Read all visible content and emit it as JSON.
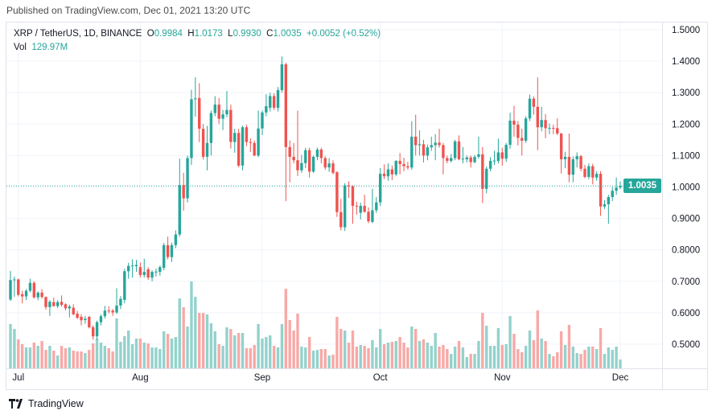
{
  "header": {
    "published": "Published on TradingView.com, Dec 01, 2021 13:20 UTC"
  },
  "legend": {
    "symbol": "XRP / TetherUS, 1D, BINANCE",
    "open_label": "O",
    "open": "0.9984",
    "high_label": "H",
    "high": "1.0173",
    "low_label": "L",
    "low": "0.9930",
    "close_label": "C",
    "close": "1.0035",
    "change": "+0.0052 (+0.52%)",
    "vol_label": "Vol",
    "vol": "129.97M"
  },
  "last_price": "1.0035",
  "footer": {
    "brand": "TradingView"
  },
  "colors": {
    "up": "#26a69a",
    "down": "#ef5350",
    "up_volume": "#93d2cc",
    "down_volume": "#f7a9a7",
    "grid": "#f0f3fa"
  },
  "chart_data": {
    "type": "candlestick",
    "symbol": "XRP / TetherUS",
    "interval": "1D",
    "exchange": "BINANCE",
    "ylim": [
      0.43,
      1.52
    ],
    "y_ticks": [
      "1.5000",
      "1.4000",
      "1.3000",
      "1.2000",
      "1.1000",
      "1.0000",
      "0.9000",
      "0.8000",
      "0.7000",
      "0.6000",
      "0.5000"
    ],
    "x_ticks": [
      {
        "label": "Jul",
        "date": "2021-07-01"
      },
      {
        "label": "Aug",
        "date": "2021-08-01"
      },
      {
        "label": "Sep",
        "date": "2021-09-01"
      },
      {
        "label": "Oct",
        "date": "2021-10-01"
      },
      {
        "label": "Nov",
        "date": "2021-11-01"
      },
      {
        "label": "Dec",
        "date": "2021-12-01"
      }
    ],
    "grid": true,
    "volume_unit": "M",
    "columns": [
      "date",
      "open",
      "high",
      "low",
      "close",
      "volume"
    ],
    "candles": [
      [
        "2021-06-29",
        0.642,
        0.733,
        0.638,
        0.704,
        649
      ],
      [
        "2021-06-30",
        0.704,
        0.715,
        0.651,
        0.706,
        578
      ],
      [
        "2021-07-01",
        0.706,
        0.709,
        0.652,
        0.657,
        425
      ],
      [
        "2021-07-02",
        0.659,
        0.67,
        0.63,
        0.652,
        354
      ],
      [
        "2021-07-03",
        0.652,
        0.675,
        0.64,
        0.67,
        307
      ],
      [
        "2021-07-04",
        0.67,
        0.708,
        0.665,
        0.695,
        307
      ],
      [
        "2021-07-05",
        0.695,
        0.7,
        0.645,
        0.649,
        378
      ],
      [
        "2021-07-06",
        0.649,
        0.668,
        0.64,
        0.664,
        330
      ],
      [
        "2021-07-07",
        0.664,
        0.675,
        0.645,
        0.65,
        401
      ],
      [
        "2021-07-08",
        0.65,
        0.652,
        0.61,
        0.618,
        271
      ],
      [
        "2021-07-09",
        0.618,
        0.64,
        0.59,
        0.635,
        330
      ],
      [
        "2021-07-10",
        0.634,
        0.648,
        0.62,
        0.621,
        260
      ],
      [
        "2021-07-11",
        0.621,
        0.64,
        0.615,
        0.634,
        189
      ],
      [
        "2021-07-12",
        0.635,
        0.655,
        0.62,
        0.625,
        330
      ],
      [
        "2021-07-13",
        0.627,
        0.63,
        0.608,
        0.614,
        295
      ],
      [
        "2021-07-14",
        0.614,
        0.626,
        0.585,
        0.62,
        307
      ],
      [
        "2021-07-15",
        0.616,
        0.627,
        0.592,
        0.595,
        260
      ],
      [
        "2021-07-16",
        0.597,
        0.606,
        0.58,
        0.584,
        248
      ],
      [
        "2021-07-17",
        0.587,
        0.595,
        0.56,
        0.576,
        248
      ],
      [
        "2021-07-18",
        0.577,
        0.59,
        0.565,
        0.581,
        224
      ],
      [
        "2021-07-19",
        0.587,
        0.59,
        0.55,
        0.554,
        271
      ],
      [
        "2021-07-20",
        0.554,
        0.56,
        0.514,
        0.525,
        366
      ],
      [
        "2021-07-21",
        0.525,
        0.575,
        0.515,
        0.57,
        437
      ],
      [
        "2021-07-22",
        0.57,
        0.595,
        0.56,
        0.589,
        378
      ],
      [
        "2021-07-23",
        0.589,
        0.622,
        0.582,
        0.607,
        330
      ],
      [
        "2021-07-24",
        0.607,
        0.62,
        0.598,
        0.605,
        295
      ],
      [
        "2021-07-25",
        0.607,
        0.612,
        0.59,
        0.601,
        248
      ],
      [
        "2021-07-26",
        0.601,
        0.678,
        0.596,
        0.623,
        732
      ],
      [
        "2021-07-27",
        0.623,
        0.653,
        0.612,
        0.644,
        389
      ],
      [
        "2021-07-28",
        0.641,
        0.74,
        0.63,
        0.732,
        472
      ],
      [
        "2021-07-29",
        0.732,
        0.759,
        0.708,
        0.749,
        555
      ],
      [
        "2021-07-30",
        0.749,
        0.77,
        0.712,
        0.75,
        354
      ],
      [
        "2021-07-31",
        0.748,
        0.768,
        0.73,
        0.752,
        437
      ],
      [
        "2021-08-01",
        0.745,
        0.76,
        0.712,
        0.72,
        437
      ],
      [
        "2021-08-02",
        0.72,
        0.772,
        0.712,
        0.73,
        378
      ],
      [
        "2021-08-03",
        0.738,
        0.745,
        0.705,
        0.712,
        366
      ],
      [
        "2021-08-04",
        0.712,
        0.735,
        0.7,
        0.73,
        307
      ],
      [
        "2021-08-05",
        0.728,
        0.74,
        0.715,
        0.731,
        307
      ],
      [
        "2021-08-06",
        0.73,
        0.75,
        0.718,
        0.745,
        283
      ],
      [
        "2021-08-07",
        0.743,
        0.822,
        0.735,
        0.815,
        543
      ],
      [
        "2021-08-08",
        0.815,
        0.842,
        0.77,
        0.777,
        507
      ],
      [
        "2021-08-09",
        0.777,
        0.823,
        0.762,
        0.815,
        437
      ],
      [
        "2021-08-10",
        0.815,
        0.862,
        0.805,
        0.849,
        460
      ],
      [
        "2021-08-11",
        0.849,
        1.09,
        0.842,
        1.006,
        1027
      ],
      [
        "2021-08-12",
        1.006,
        1.045,
        0.925,
        0.964,
        897
      ],
      [
        "2021-08-13",
        0.964,
        1.1,
        0.951,
        1.092,
        614
      ],
      [
        "2021-08-14",
        1.092,
        1.309,
        1.07,
        1.279,
        1274
      ],
      [
        "2021-08-15",
        1.279,
        1.349,
        1.224,
        1.282,
        1050
      ],
      [
        "2021-08-16",
        1.283,
        1.33,
        1.143,
        1.185,
        814
      ],
      [
        "2021-08-17",
        1.185,
        1.2,
        1.087,
        1.096,
        814
      ],
      [
        "2021-08-18",
        1.096,
        1.194,
        1.053,
        1.14,
        791
      ],
      [
        "2021-08-19",
        1.14,
        1.243,
        1.1,
        1.235,
        661
      ],
      [
        "2021-08-20",
        1.235,
        1.289,
        1.225,
        1.262,
        543
      ],
      [
        "2021-08-21",
        1.262,
        1.283,
        1.2,
        1.217,
        354
      ],
      [
        "2021-08-22",
        1.217,
        1.245,
        1.181,
        1.231,
        330
      ],
      [
        "2021-08-23",
        1.231,
        1.305,
        1.222,
        1.245,
        602
      ],
      [
        "2021-08-24",
        1.245,
        1.262,
        1.122,
        1.143,
        578
      ],
      [
        "2021-08-25",
        1.143,
        1.185,
        1.109,
        1.172,
        484
      ],
      [
        "2021-08-26",
        1.172,
        1.185,
        1.063,
        1.068,
        519
      ],
      [
        "2021-08-27",
        1.068,
        1.195,
        1.053,
        1.19,
        519
      ],
      [
        "2021-08-28",
        1.19,
        1.198,
        1.13,
        1.143,
        295
      ],
      [
        "2021-08-29",
        1.143,
        1.155,
        1.112,
        1.14,
        295
      ],
      [
        "2021-08-30",
        1.14,
        1.148,
        1.098,
        1.1,
        342
      ],
      [
        "2021-08-31",
        1.1,
        1.243,
        1.095,
        1.186,
        649
      ],
      [
        "2021-09-01",
        1.186,
        1.243,
        1.165,
        1.237,
        437
      ],
      [
        "2021-09-02",
        1.237,
        1.295,
        1.225,
        1.257,
        460
      ],
      [
        "2021-09-03",
        1.252,
        1.3,
        1.24,
        1.289,
        484
      ],
      [
        "2021-09-04",
        1.289,
        1.298,
        1.245,
        1.252,
        330
      ],
      [
        "2021-09-05",
        1.252,
        1.318,
        1.24,
        1.308,
        307
      ],
      [
        "2021-09-06",
        1.308,
        1.415,
        1.3,
        1.39,
        649
      ],
      [
        "2021-09-07",
        1.39,
        1.395,
        0.955,
        1.127,
        1168
      ],
      [
        "2021-09-08",
        1.127,
        1.148,
        1.015,
        1.096,
        708
      ],
      [
        "2021-09-09",
        1.096,
        1.14,
        1.075,
        1.085,
        555
      ],
      [
        "2021-09-10",
        1.085,
        1.243,
        1.035,
        1.053,
        802
      ],
      [
        "2021-09-11",
        1.053,
        1.102,
        1.045,
        1.076,
        319
      ],
      [
        "2021-09-12",
        1.076,
        1.125,
        1.06,
        1.117,
        307
      ],
      [
        "2021-09-13",
        1.117,
        1.125,
        1.03,
        1.049,
        460
      ],
      [
        "2021-09-14",
        1.049,
        1.1,
        1.045,
        1.096,
        260
      ],
      [
        "2021-09-15",
        1.096,
        1.125,
        1.085,
        1.119,
        271
      ],
      [
        "2021-09-16",
        1.119,
        1.125,
        1.075,
        1.092,
        283
      ],
      [
        "2021-09-17",
        1.092,
        1.098,
        1.055,
        1.062,
        283
      ],
      [
        "2021-09-18",
        1.062,
        1.092,
        1.048,
        1.075,
        189
      ],
      [
        "2021-09-19",
        1.075,
        1.085,
        1.04,
        1.045,
        201
      ],
      [
        "2021-09-20",
        1.047,
        1.05,
        0.905,
        0.92,
        755
      ],
      [
        "2021-09-21",
        0.92,
        0.962,
        0.862,
        0.872,
        578
      ],
      [
        "2021-09-22",
        0.872,
        1.012,
        0.86,
        1.005,
        555
      ],
      [
        "2021-09-23",
        1.005,
        1.018,
        0.965,
        1.002,
        378
      ],
      [
        "2021-09-24",
        1.002,
        1.005,
        0.883,
        0.94,
        555
      ],
      [
        "2021-09-25",
        0.94,
        0.953,
        0.912,
        0.938,
        319
      ],
      [
        "2021-09-26",
        0.918,
        0.95,
        0.897,
        0.94,
        342
      ],
      [
        "2021-09-27",
        0.94,
        0.975,
        0.918,
        0.921,
        330
      ],
      [
        "2021-09-28",
        0.921,
        0.935,
        0.885,
        0.891,
        295
      ],
      [
        "2021-09-29",
        0.889,
        0.994,
        0.885,
        0.926,
        413
      ],
      [
        "2021-09-30",
        0.926,
        0.968,
        0.918,
        0.951,
        307
      ],
      [
        "2021-10-01",
        0.951,
        1.06,
        0.94,
        1.042,
        578
      ],
      [
        "2021-10-02",
        1.042,
        1.072,
        1.025,
        1.034,
        354
      ],
      [
        "2021-10-03",
        1.034,
        1.075,
        1.02,
        1.056,
        378
      ],
      [
        "2021-10-04",
        1.056,
        1.068,
        1.022,
        1.04,
        389
      ],
      [
        "2021-10-05",
        1.04,
        1.085,
        1.035,
        1.083,
        401
      ],
      [
        "2021-10-06",
        1.083,
        1.108,
        1.04,
        1.073,
        460
      ],
      [
        "2021-10-07",
        1.073,
        1.093,
        1.05,
        1.066,
        378
      ],
      [
        "2021-10-08",
        1.066,
        1.08,
        1.055,
        1.062,
        307
      ],
      [
        "2021-10-09",
        1.062,
        1.209,
        1.055,
        1.16,
        614
      ],
      [
        "2021-10-10",
        1.16,
        1.23,
        1.1,
        1.133,
        578
      ],
      [
        "2021-10-11",
        1.133,
        1.18,
        1.1,
        1.136,
        401
      ],
      [
        "2021-10-12",
        1.136,
        1.15,
        1.078,
        1.1,
        425
      ],
      [
        "2021-10-13",
        1.1,
        1.135,
        1.085,
        1.126,
        378
      ],
      [
        "2021-10-14",
        1.126,
        1.16,
        1.115,
        1.133,
        330
      ],
      [
        "2021-10-15",
        1.133,
        1.168,
        1.085,
        1.141,
        519
      ],
      [
        "2021-10-16",
        1.141,
        1.185,
        1.125,
        1.133,
        319
      ],
      [
        "2021-10-17",
        1.133,
        1.14,
        1.04,
        1.092,
        342
      ],
      [
        "2021-10-18",
        1.092,
        1.1,
        1.075,
        1.083,
        283
      ],
      [
        "2021-10-19",
        1.083,
        1.105,
        1.078,
        1.092,
        212
      ],
      [
        "2021-10-20",
        1.092,
        1.15,
        1.085,
        1.145,
        319
      ],
      [
        "2021-10-21",
        1.145,
        1.164,
        1.085,
        1.088,
        401
      ],
      [
        "2021-10-22",
        1.088,
        1.127,
        1.075,
        1.09,
        307
      ],
      [
        "2021-10-23",
        1.088,
        1.1,
        1.078,
        1.094,
        165
      ],
      [
        "2021-10-24",
        1.094,
        1.1,
        1.062,
        1.079,
        212
      ],
      [
        "2021-10-25",
        1.079,
        1.102,
        1.075,
        1.096,
        212
      ],
      [
        "2021-10-26",
        1.096,
        1.16,
        1.09,
        1.104,
        401
      ],
      [
        "2021-10-27",
        1.104,
        1.127,
        0.949,
        0.994,
        814
      ],
      [
        "2021-10-28",
        0.994,
        1.065,
        0.98,
        1.058,
        625
      ],
      [
        "2021-10-29",
        1.058,
        1.095,
        1.05,
        1.083,
        330
      ],
      [
        "2021-10-30",
        1.083,
        1.115,
        1.07,
        1.084,
        330
      ],
      [
        "2021-10-31",
        1.083,
        1.154,
        1.075,
        1.11,
        590
      ],
      [
        "2021-11-01",
        1.11,
        1.125,
        1.068,
        1.09,
        342
      ],
      [
        "2021-11-02",
        1.09,
        1.14,
        1.08,
        1.134,
        354
      ],
      [
        "2021-11-03",
        1.134,
        1.236,
        1.122,
        1.211,
        767
      ],
      [
        "2021-11-04",
        1.211,
        1.258,
        1.16,
        1.198,
        507
      ],
      [
        "2021-11-05",
        1.198,
        1.21,
        1.132,
        1.156,
        283
      ],
      [
        "2021-11-06",
        1.156,
        1.185,
        1.1,
        1.147,
        236
      ],
      [
        "2021-11-07",
        1.147,
        1.225,
        1.14,
        1.218,
        330
      ],
      [
        "2021-11-08",
        1.218,
        1.294,
        1.21,
        1.281,
        555
      ],
      [
        "2021-11-09",
        1.281,
        1.288,
        1.23,
        1.255,
        413
      ],
      [
        "2021-11-10",
        1.255,
        1.349,
        1.117,
        1.19,
        850
      ],
      [
        "2021-11-11",
        1.19,
        1.255,
        1.177,
        1.213,
        437
      ],
      [
        "2021-11-12",
        1.213,
        1.232,
        1.155,
        1.187,
        401
      ],
      [
        "2021-11-13",
        1.187,
        1.202,
        1.168,
        1.188,
        212
      ],
      [
        "2021-11-14",
        1.188,
        1.198,
        1.168,
        1.187,
        177
      ],
      [
        "2021-11-15",
        1.187,
        1.218,
        1.165,
        1.17,
        236
      ],
      [
        "2021-11-16",
        1.17,
        1.172,
        1.043,
        1.088,
        543
      ],
      [
        "2021-11-17",
        1.088,
        1.112,
        1.06,
        1.096,
        342
      ],
      [
        "2021-11-18",
        1.096,
        1.17,
        1.015,
        1.039,
        637
      ],
      [
        "2021-11-19",
        1.039,
        1.097,
        1.015,
        1.088,
        319
      ],
      [
        "2021-11-20",
        1.088,
        1.11,
        1.062,
        1.098,
        224
      ],
      [
        "2021-11-21",
        1.098,
        1.102,
        1.05,
        1.058,
        212
      ],
      [
        "2021-11-22",
        1.058,
        1.07,
        1.028,
        1.032,
        271
      ],
      [
        "2021-11-23",
        1.032,
        1.075,
        1.025,
        1.066,
        319
      ],
      [
        "2021-11-24",
        1.066,
        1.074,
        1.008,
        1.03,
        319
      ],
      [
        "2021-11-25",
        1.03,
        1.05,
        1.02,
        1.042,
        283
      ],
      [
        "2021-11-26",
        1.042,
        1.05,
        0.908,
        0.938,
        590
      ],
      [
        "2021-11-27",
        0.938,
        0.958,
        0.93,
        0.945,
        212
      ],
      [
        "2021-11-28",
        0.945,
        0.975,
        0.883,
        0.968,
        307
      ],
      [
        "2021-11-29",
        0.968,
        1.0,
        0.955,
        0.988,
        271
      ],
      [
        "2021-11-30",
        0.988,
        1.03,
        0.975,
        0.998,
        319
      ],
      [
        "2021-12-01",
        0.9984,
        1.0173,
        0.993,
        1.0035,
        129.97
      ]
    ]
  }
}
